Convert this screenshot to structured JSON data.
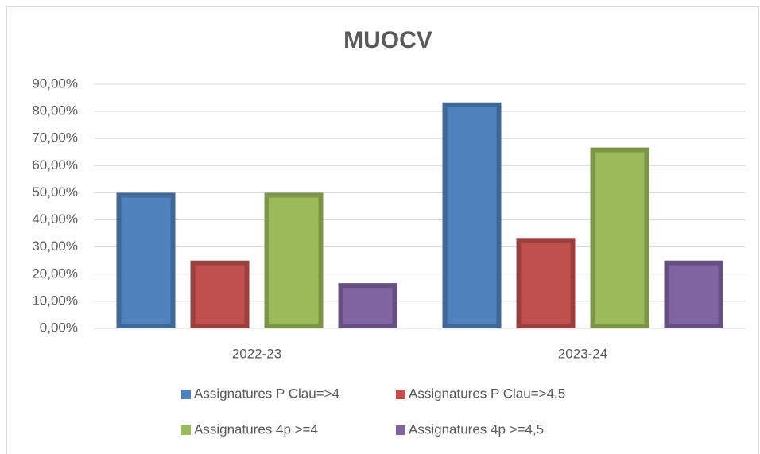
{
  "chart_data": {
    "type": "bar",
    "title": "MUOCV",
    "categories": [
      "2022-23",
      "2023-24"
    ],
    "series": [
      {
        "name": "Assignatures P Clau=>4",
        "color": "#4f81bd",
        "values": [
          50,
          83.33
        ]
      },
      {
        "name": "Assignatures P Clau=>4,5",
        "color": "#c0504d",
        "values": [
          25,
          33.33
        ]
      },
      {
        "name": "Assignatures 4p >=4",
        "color": "#9bbb59",
        "values": [
          50,
          66.67
        ]
      },
      {
        "name": "Assignatures 4p >=4,5",
        "color": "#8064a2",
        "values": [
          16.67,
          25
        ]
      }
    ],
    "ylim": [
      0,
      90
    ],
    "yticks": [
      {
        "value": 0,
        "label": "0,00%"
      },
      {
        "value": 10,
        "label": "10,00%"
      },
      {
        "value": 20,
        "label": "20,00%"
      },
      {
        "value": 30,
        "label": "30,00%"
      },
      {
        "value": 40,
        "label": "40,00%"
      },
      {
        "value": 50,
        "label": "50,00%"
      },
      {
        "value": 60,
        "label": "60,00%"
      },
      {
        "value": 70,
        "label": "70,00%"
      },
      {
        "value": 80,
        "label": "80,00%"
      },
      {
        "value": 90,
        "label": "90,00%"
      }
    ],
    "grid": true,
    "legend": "bottom"
  }
}
